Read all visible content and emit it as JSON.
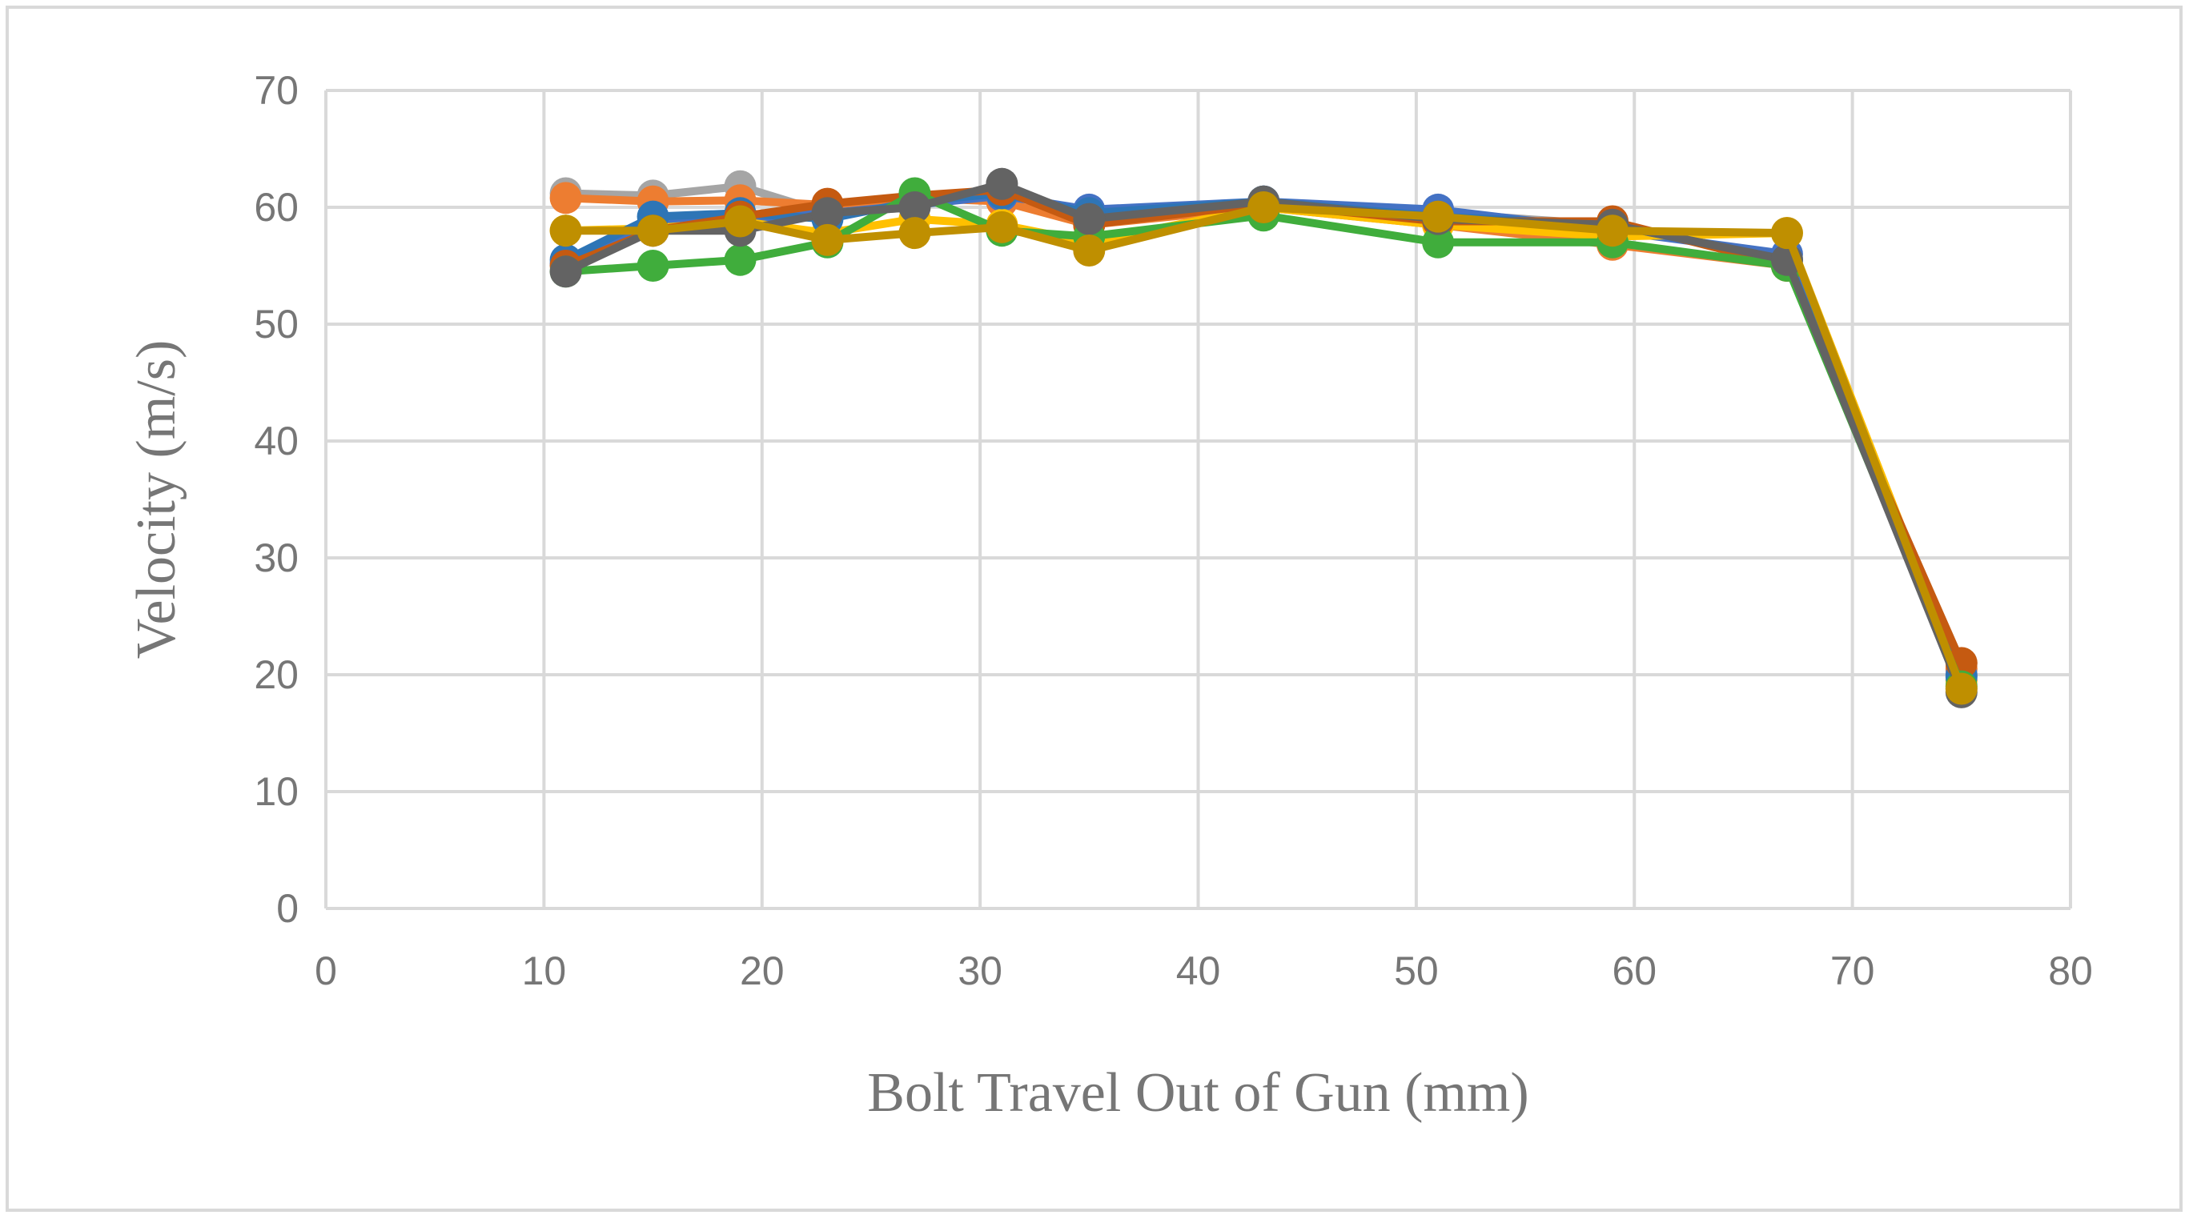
{
  "chart_data": {
    "type": "line",
    "title": "",
    "xlabel": "Bolt Travel Out of Gun (mm)",
    "ylabel": "Velocity (m/s)",
    "xlim": [
      0,
      80
    ],
    "ylim": [
      0,
      70
    ],
    "x_ticks": [
      "0",
      "10",
      "20",
      "30",
      "40",
      "50",
      "60",
      "70",
      "80"
    ],
    "y_ticks": [
      "0",
      "10",
      "20",
      "30",
      "40",
      "50",
      "60",
      "70"
    ],
    "grid": true,
    "legend": "none",
    "x": [
      11,
      15,
      19,
      23,
      27,
      31,
      35,
      43,
      51,
      59,
      67,
      75
    ],
    "series": [
      {
        "color": "#a5a5a5",
        "values": [
          61.2,
          61.0,
          61.8,
          59.5,
          60.0,
          62.0,
          59.0,
          60.5,
          59.5,
          58.5,
          55.5,
          18.8
        ]
      },
      {
        "color": "#ed7d31",
        "values": [
          60.8,
          60.5,
          60.6,
          60.2,
          60.8,
          60.5,
          58.5,
          60.0,
          58.5,
          56.8,
          55.0,
          20.5
        ]
      },
      {
        "color": "#4472c4",
        "values": [
          55.2,
          58.5,
          59.0,
          59.5,
          60.2,
          61.0,
          59.8,
          60.5,
          59.8,
          58.0,
          56.0,
          20.0
        ]
      },
      {
        "color": "#ffc000",
        "values": [
          58.0,
          58.2,
          58.8,
          57.8,
          59.0,
          58.5,
          57.0,
          60.0,
          58.5,
          57.5,
          57.8,
          19.5
        ]
      },
      {
        "color": "#2e75b6",
        "values": [
          55.5,
          59.2,
          59.5,
          59.0,
          60.5,
          61.2,
          59.5,
          60.5,
          59.2,
          58.5,
          55.5,
          19.8
        ]
      },
      {
        "color": "#c55a11",
        "values": [
          55.0,
          58.0,
          59.2,
          60.3,
          61.0,
          61.5,
          58.5,
          60.3,
          58.8,
          58.8,
          55.0,
          21.0
        ]
      },
      {
        "color": "#40ad3c",
        "values": [
          54.5,
          55.0,
          55.5,
          57.0,
          61.2,
          58.0,
          57.5,
          59.3,
          57.0,
          57.0,
          55.0,
          19.0
        ]
      },
      {
        "color": "#636363",
        "values": [
          54.5,
          58.0,
          58.0,
          59.5,
          60.0,
          62.0,
          59.0,
          60.5,
          59.0,
          58.5,
          55.5,
          18.5
        ]
      },
      {
        "color": "#bf8f00",
        "values": [
          58.0,
          58.0,
          58.8,
          57.2,
          57.8,
          58.3,
          56.3,
          60.0,
          59.2,
          58.0,
          57.8,
          18.8
        ]
      }
    ]
  }
}
